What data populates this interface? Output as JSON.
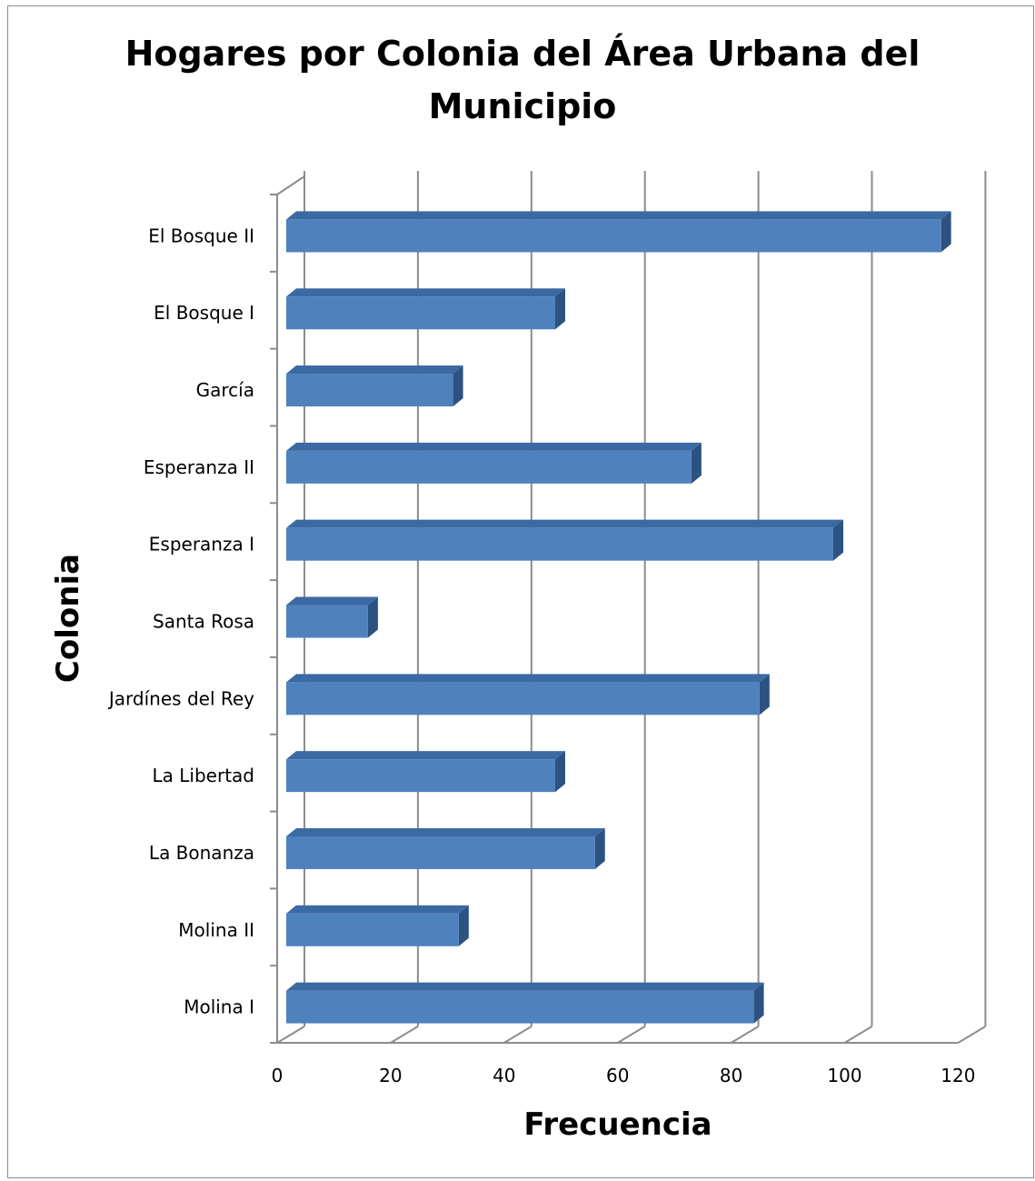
{
  "chart_data": {
    "type": "bar",
    "orientation": "horizontal",
    "style": "3d",
    "title": "Hogares por Colonia del Área Urbana del Municipio",
    "xlabel": "Frecuencia",
    "ylabel": "Colonia",
    "categories": [
      "El Bosque II",
      "El Bosque I",
      "García",
      "Esperanza II",
      "Esperanza I",
      "Santa Rosa",
      "Jardínes del Rey",
      "La Libertad",
      "La Bonanza",
      "Molina II",
      "Molina I"
    ],
    "values": [
      117,
      49,
      31,
      73,
      98,
      16,
      85,
      49,
      56,
      32,
      84
    ],
    "xlim": [
      0,
      120
    ],
    "xticks": [
      "0",
      "20",
      "40",
      "60",
      "80",
      "100",
      "120"
    ],
    "grid": true,
    "legend": "none",
    "colors": {
      "bar_front": "#4f81bd",
      "bar_top": "#3b6aa3",
      "bar_side": "#2c5282",
      "grid": "#8c8c8c"
    }
  }
}
